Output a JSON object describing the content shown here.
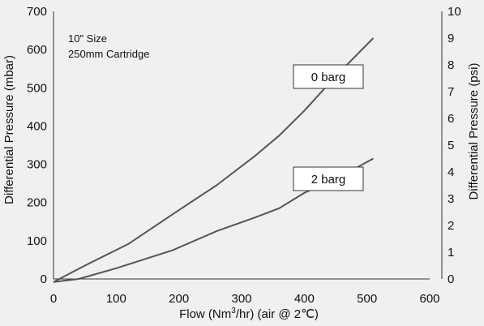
{
  "chart_data": {
    "type": "line",
    "xlabel_main": "Flow (Nm",
    "xlabel_sup": "3",
    "xlabel_rest": "/hr) (air @ 2℃)",
    "ylabel_left": "Differential Pressure (mbar)",
    "ylabel_right": "Differential Pressure (psi)",
    "annotation_line1": "10\" Size",
    "annotation_line2": "250mm Cartridge",
    "xlim": [
      0,
      600
    ],
    "ylim_left": [
      0,
      700
    ],
    "ylim_right": [
      0,
      10
    ],
    "x_ticks": [
      0,
      100,
      200,
      300,
      400,
      500,
      600
    ],
    "y_left_ticks": [
      0,
      100,
      200,
      300,
      400,
      500,
      600,
      700
    ],
    "y_right_ticks": [
      0,
      1,
      2,
      3,
      4,
      5,
      6,
      7,
      8,
      9,
      10
    ],
    "grid": false,
    "series": [
      {
        "name": "0 barg",
        "color": "#555555",
        "points": [
          [
            0,
            -8
          ],
          [
            50,
            35
          ],
          [
            120,
            92
          ],
          [
            200,
            180
          ],
          [
            260,
            245
          ],
          [
            320,
            320
          ],
          [
            360,
            375
          ],
          [
            400,
            440
          ],
          [
            450,
            530
          ],
          [
            510,
            630
          ]
        ]
      },
      {
        "name": "2 barg",
        "color": "#555555",
        "points": [
          [
            0,
            -8
          ],
          [
            40,
            0
          ],
          [
            100,
            28
          ],
          [
            190,
            75
          ],
          [
            260,
            125
          ],
          [
            320,
            160
          ],
          [
            360,
            185
          ],
          [
            400,
            225
          ],
          [
            460,
            270
          ],
          [
            510,
            315
          ]
        ]
      }
    ]
  }
}
